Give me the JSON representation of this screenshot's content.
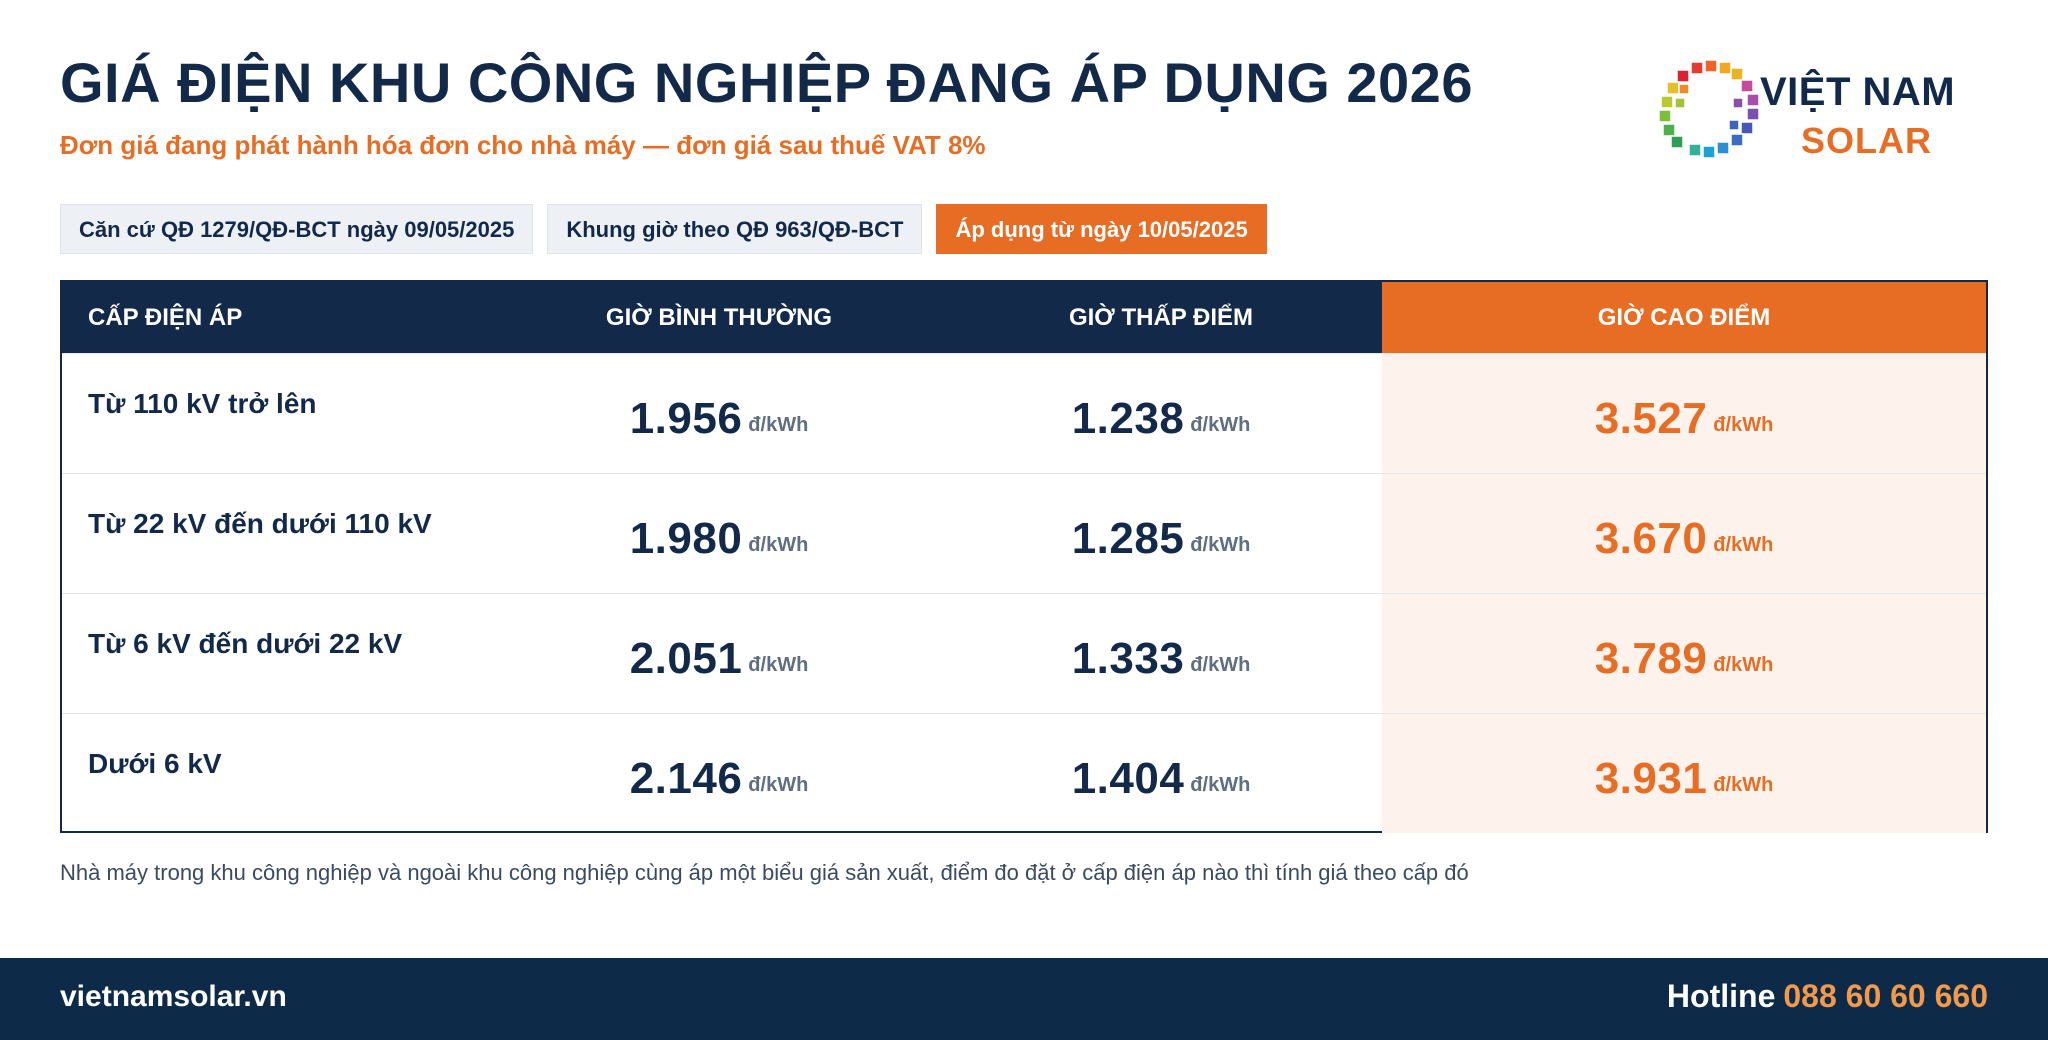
{
  "title": "GIÁ ĐIỆN KHU CÔNG NGHIỆP ĐANG ÁP DỤNG 2026",
  "subtitle": "Đơn giá đang phát hành hóa đơn cho nhà máy — đơn giá sau thuế VAT 8%",
  "logo": {
    "line1": "VIỆT NAM",
    "line2": "SOLAR"
  },
  "chips": [
    "Căn cứ QĐ 1279/QĐ-BCT ngày 09/05/2025",
    "Khung giờ theo QĐ 963/QĐ-BCT",
    "Áp dụng từ ngày 10/05/2025"
  ],
  "colors": {
    "navy": "#12294a",
    "orange": "#e86d24",
    "peak_bg": "#fdf3ec"
  },
  "table": {
    "headers": [
      "CẤP ĐIỆN ÁP",
      "GIỜ BÌNH THƯỜNG",
      "GIỜ THẤP ĐIỂM",
      "GIỜ CAO ĐIỂM"
    ],
    "unit": "đ/kWh",
    "rows": [
      {
        "level": "Từ 110 kV trở lên",
        "normal": "1.956",
        "offpeak": "1.238",
        "peak": "3.527"
      },
      {
        "level": "Từ 22 kV đến dưới 110 kV",
        "normal": "1.980",
        "offpeak": "1.285",
        "peak": "3.670"
      },
      {
        "level": "Từ 6 kV đến dưới 22 kV",
        "normal": "2.051",
        "offpeak": "1.333",
        "peak": "3.789"
      },
      {
        "level": "Dưới 6 kV",
        "normal": "2.146",
        "offpeak": "1.404",
        "peak": "3.931"
      }
    ]
  },
  "note": "Nhà máy trong khu công nghiệp và ngoài khu công nghiệp cùng áp một biểu giá sản xuất, điểm đo đặt ở cấp điện áp nào thì tính giá theo cấp đó",
  "footer": {
    "site": "vietnamsolar.vn",
    "hotline_label": "Hotline",
    "hotline_number": "088 60 60 660"
  }
}
